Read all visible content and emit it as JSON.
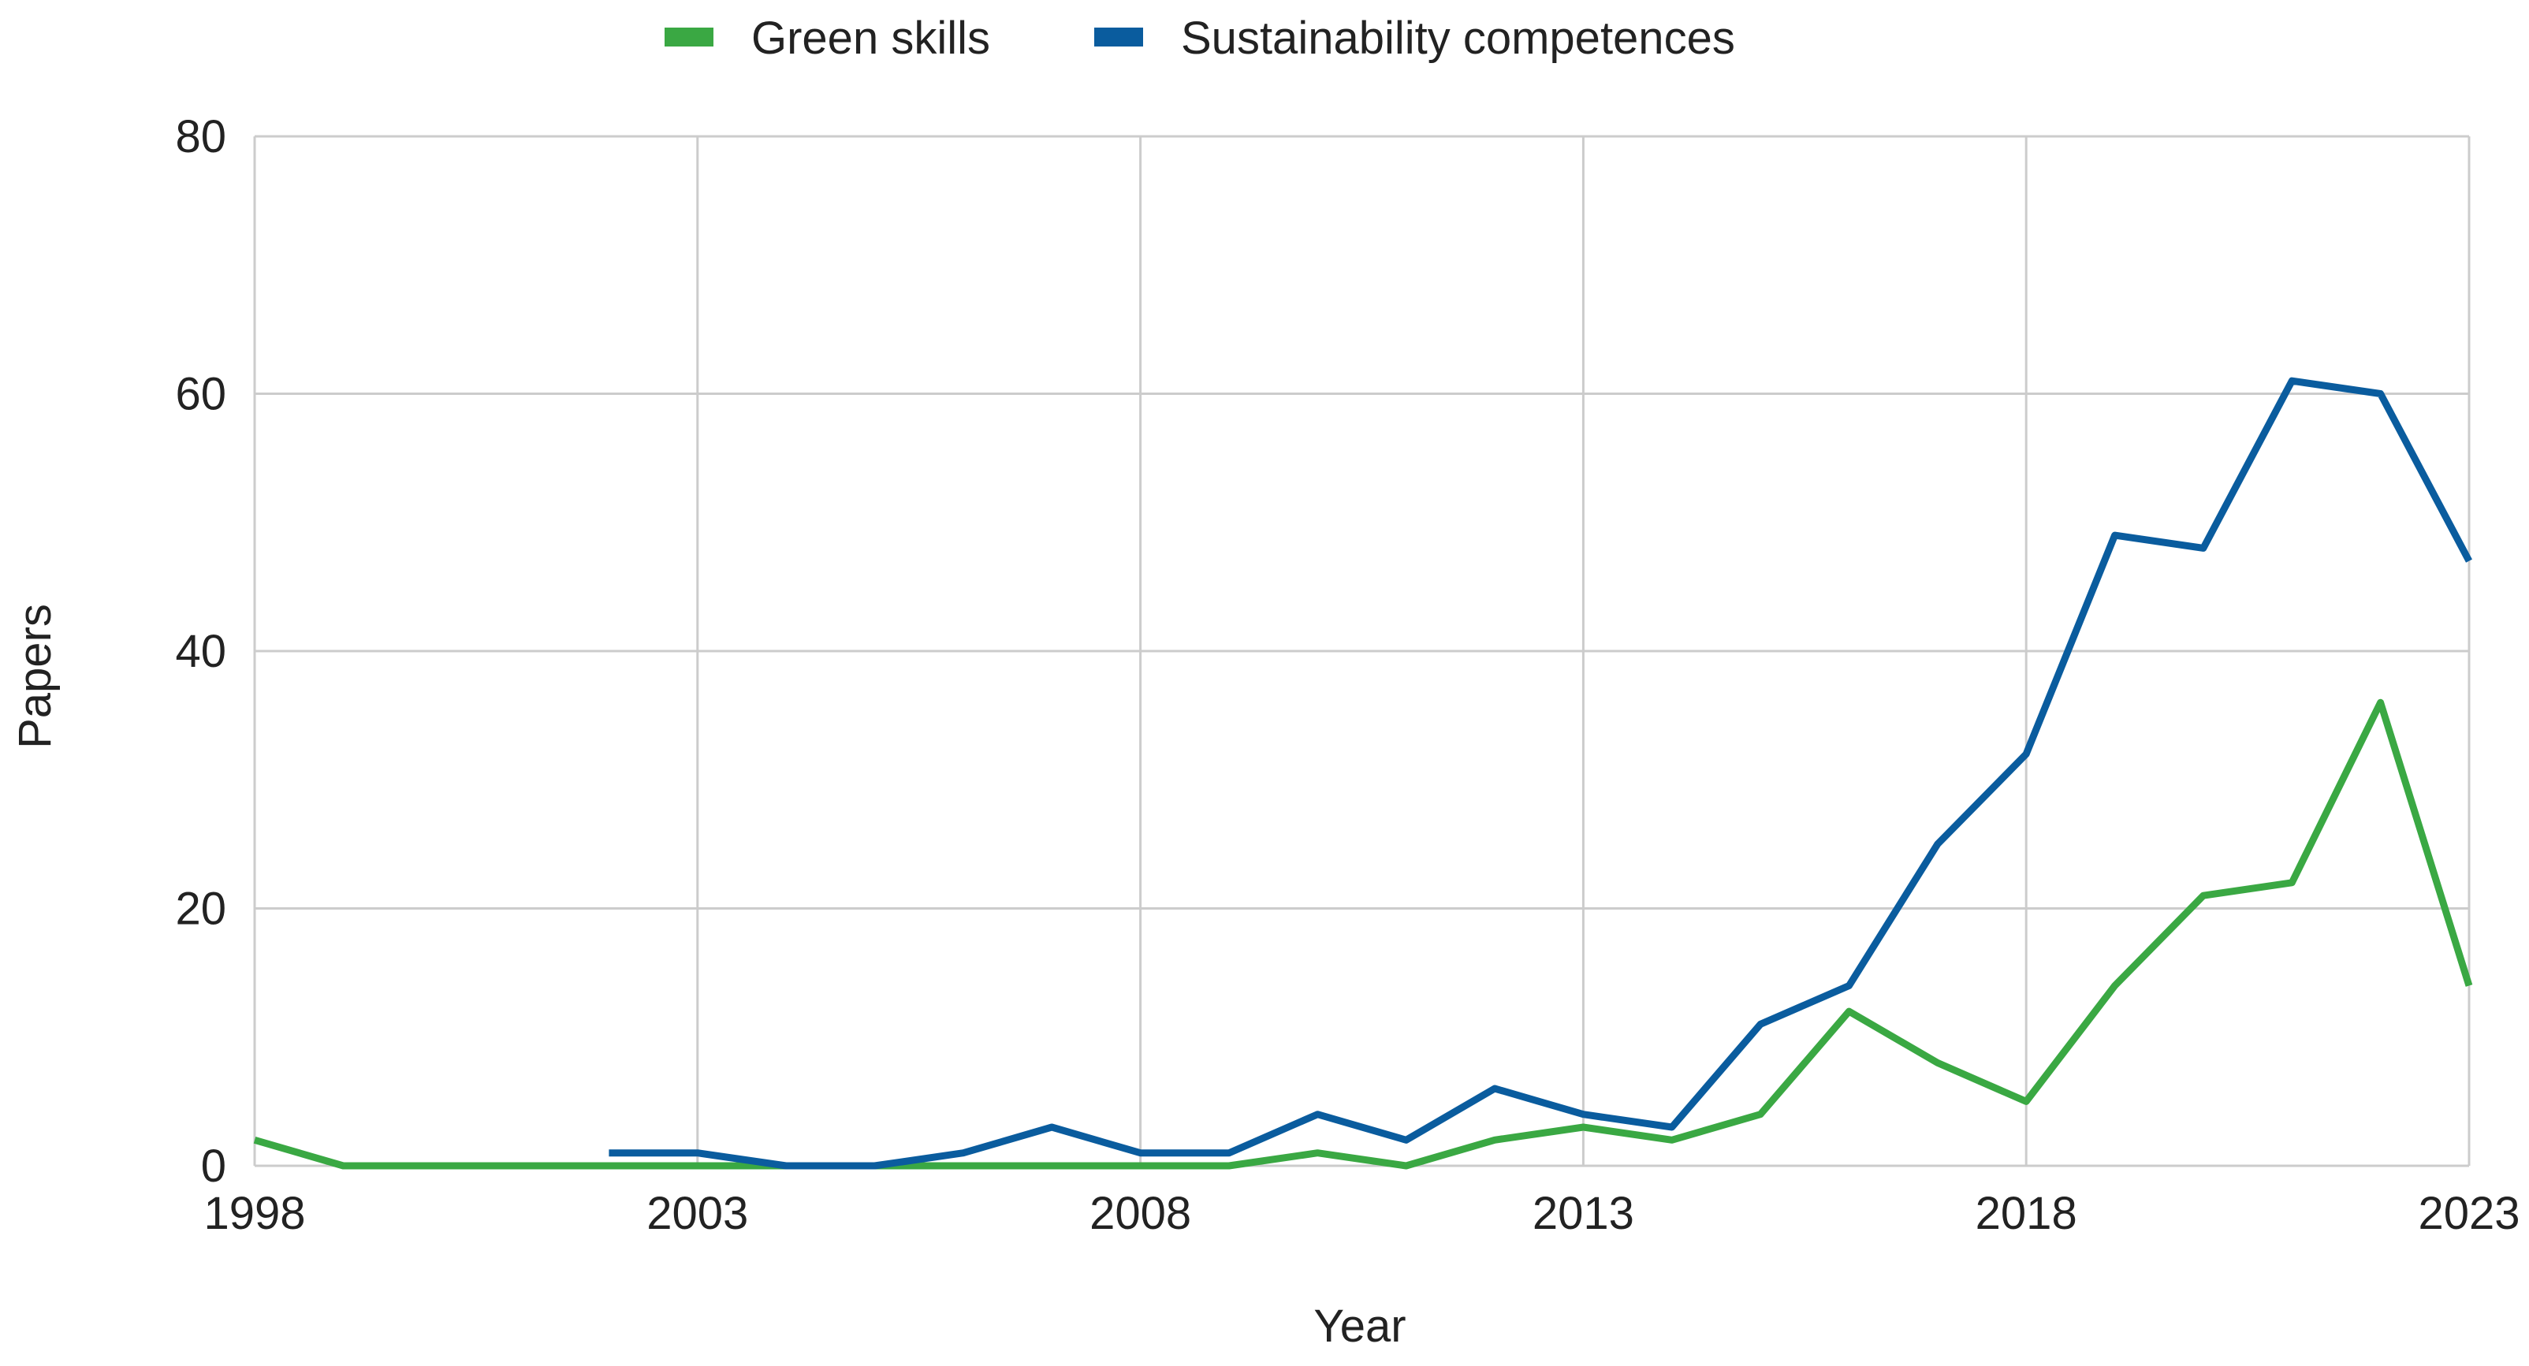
{
  "chart_data": {
    "type": "line",
    "title": "",
    "xlabel": "Year",
    "ylabel": "Papers",
    "xlim": [
      1998,
      2023
    ],
    "ylim": [
      0,
      80
    ],
    "grid": true,
    "legend_position": "top-center",
    "x_ticks": [
      "1998",
      "2003",
      "2008",
      "2013",
      "2018",
      "2023"
    ],
    "y_ticks": [
      "0",
      "20",
      "40",
      "60",
      "80"
    ],
    "series": [
      {
        "name": "Green skills",
        "color": "#3aa843",
        "x": [
          1998,
          1999,
          2000,
          2001,
          2002,
          2003,
          2004,
          2005,
          2006,
          2007,
          2008,
          2009,
          2010,
          2011,
          2012,
          2013,
          2014,
          2015,
          2016,
          2017,
          2018,
          2019,
          2020,
          2021,
          2022,
          2023
        ],
        "values": [
          2,
          0,
          0,
          0,
          0,
          0,
          0,
          0,
          0,
          0,
          0,
          0,
          1,
          0,
          2,
          3,
          2,
          4,
          12,
          8,
          5,
          14,
          21,
          22,
          36,
          14
        ]
      },
      {
        "name": "Sustainability competences",
        "color": "#0a5c9e",
        "x": [
          2002,
          2003,
          2004,
          2005,
          2006,
          2007,
          2008,
          2009,
          2010,
          2011,
          2012,
          2013,
          2014,
          2015,
          2016,
          2017,
          2018,
          2019,
          2020,
          2021,
          2022,
          2023
        ],
        "values": [
          1,
          1,
          0,
          0,
          1,
          3,
          1,
          1,
          4,
          2,
          6,
          4,
          3,
          11,
          14,
          25,
          32,
          49,
          48,
          61,
          60,
          47
        ]
      }
    ]
  }
}
